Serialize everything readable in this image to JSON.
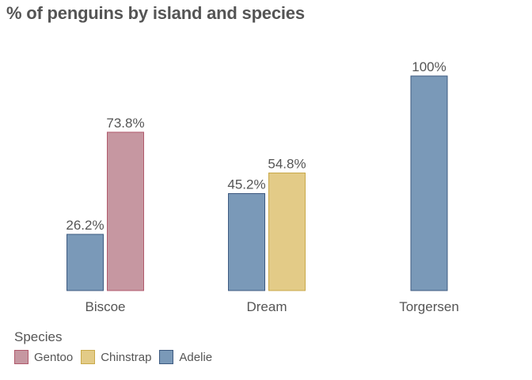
{
  "title": "% of penguins by island and species",
  "chart_data": {
    "type": "bar",
    "title": "% of penguins by island and species",
    "xlabel": "",
    "ylabel": "",
    "ylim": [
      0,
      100
    ],
    "grid": false,
    "value_format": "percent",
    "categories": [
      "Biscoe",
      "Dream",
      "Torgersen"
    ],
    "series": [
      {
        "name": "Adelie",
        "color": "#7a99b8",
        "stroke": "#3d5a80",
        "values": [
          26.2,
          45.2,
          100
        ]
      },
      {
        "name": "Gentoo",
        "color": "#c697a1",
        "stroke": "#b05a6c",
        "values": [
          73.8,
          null,
          null
        ]
      },
      {
        "name": "Chinstrap",
        "color": "#e3cb87",
        "stroke": "#c9a94a",
        "values": [
          null,
          54.8,
          null
        ]
      }
    ],
    "data_labels": [
      "26.2%",
      "73.8%",
      "45.2%",
      "54.8%",
      "100%"
    ],
    "legend": {
      "title": "Species",
      "position": "bottom-left",
      "order": [
        "Gentoo",
        "Chinstrap",
        "Adelie"
      ]
    }
  }
}
